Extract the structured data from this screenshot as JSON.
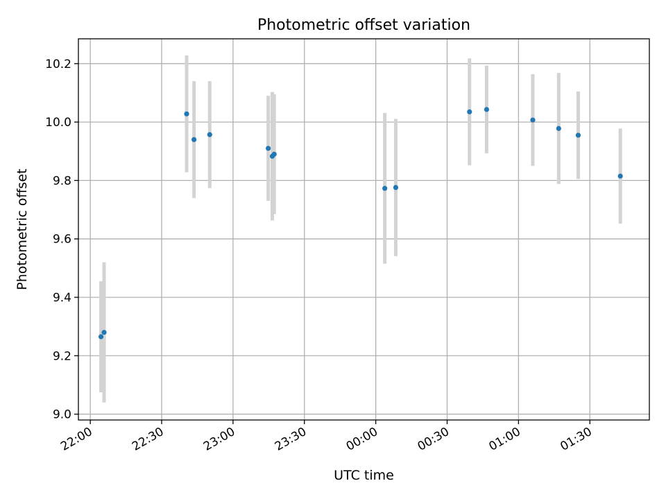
{
  "chart_data": {
    "type": "scatter",
    "title": "Photometric offset variation",
    "xlabel": "UTC time",
    "ylabel": "Photometric offset",
    "x_is_time": true,
    "xlim": [
      "21:55",
      "01:55"
    ],
    "ylim": [
      8.98,
      10.285
    ],
    "x_ticks": [
      "22:00",
      "22:30",
      "23:00",
      "23:30",
      "00:00",
      "00:30",
      "01:00",
      "01:30"
    ],
    "y_ticks": [
      9.0,
      9.2,
      9.4,
      9.6,
      9.8,
      10.0,
      10.2
    ],
    "y_tick_labels": [
      "9.0",
      "9.2",
      "9.4",
      "9.6",
      "9.8",
      "10.0",
      "10.2"
    ],
    "grid": true,
    "marker_color": "#1f77b4",
    "errorbar_color": "#d3d3d3",
    "series": [
      {
        "points": [
          {
            "x": "22:04.5",
            "y": 9.265,
            "err": 0.19
          },
          {
            "x": "22:05.8",
            "y": 9.28,
            "err": 0.24
          },
          {
            "x": "22:40.5",
            "y": 10.028,
            "err": 0.2
          },
          {
            "x": "22:43.6",
            "y": 9.94,
            "err": 0.2
          },
          {
            "x": "22:50.2",
            "y": 9.957,
            "err": 0.183
          },
          {
            "x": "23:14.8",
            "y": 9.91,
            "err": 0.18
          },
          {
            "x": "23:16.5",
            "y": 9.883,
            "err": 0.22
          },
          {
            "x": "23:17.3",
            "y": 9.89,
            "err": 0.205
          },
          {
            "x": "00:03.8",
            "y": 9.773,
            "err": 0.258
          },
          {
            "x": "00:08.4",
            "y": 9.776,
            "err": 0.235
          },
          {
            "x": "00:39.4",
            "y": 10.035,
            "err": 0.183
          },
          {
            "x": "00:46.6",
            "y": 10.043,
            "err": 0.15
          },
          {
            "x": "01:06.0",
            "y": 10.007,
            "err": 0.157
          },
          {
            "x": "01:16.9",
            "y": 9.978,
            "err": 0.19
          },
          {
            "x": "01:25.1",
            "y": 9.955,
            "err": 0.15
          },
          {
            "x": "01:42.8",
            "y": 9.815,
            "err": 0.163
          }
        ]
      }
    ]
  }
}
